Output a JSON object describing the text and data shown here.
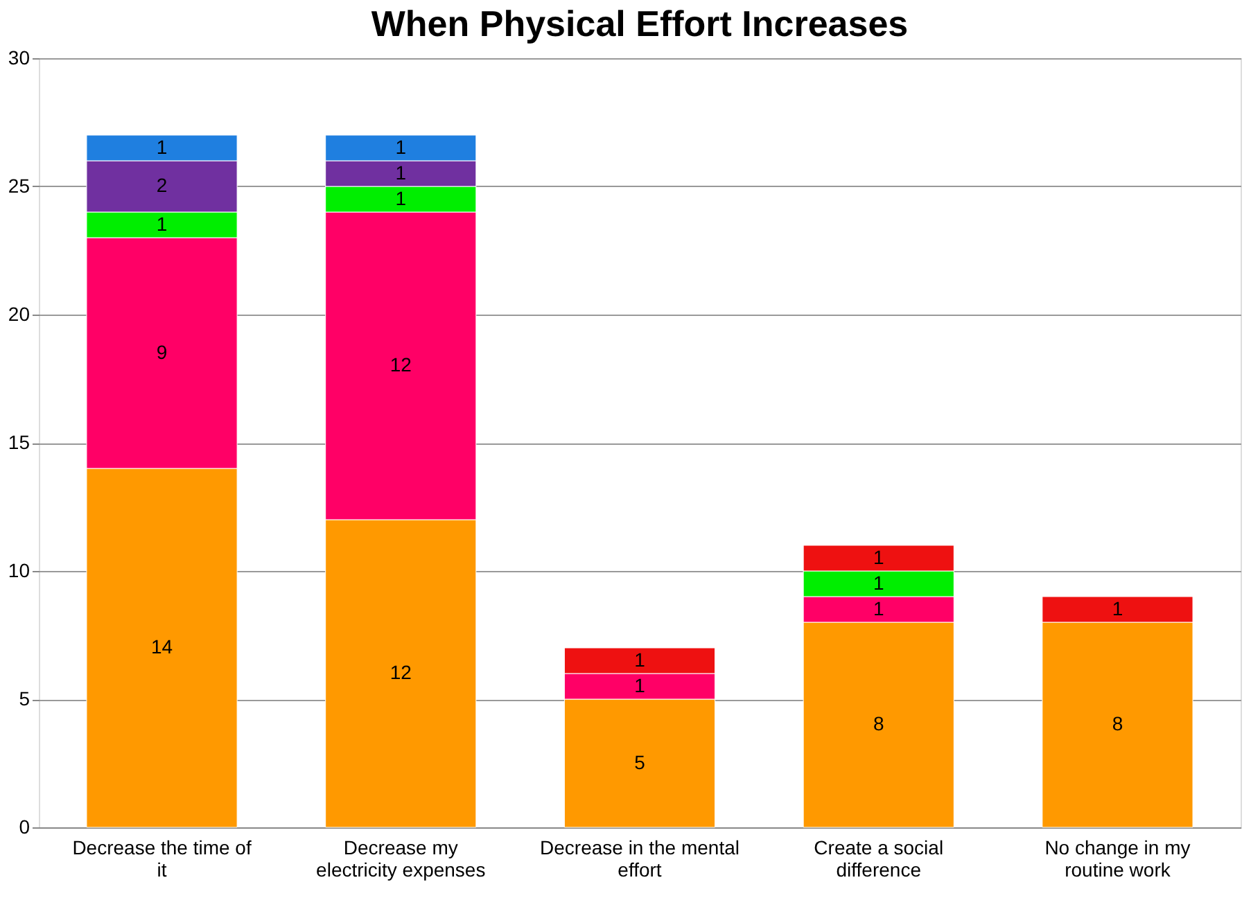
{
  "chart_data": {
    "type": "bar",
    "title": "When Physical Effort Increases",
    "stacked": true,
    "data_labels": true,
    "categories": [
      "Decrease the time of it",
      "Decrease my electricity expenses",
      "Decrease in the mental effort",
      "Create a social difference",
      "No change in my routine work"
    ],
    "series": [
      {
        "color": "#ff9900",
        "values": [
          14,
          12,
          5,
          8,
          8
        ]
      },
      {
        "color": "#ff0066",
        "values": [
          9,
          12,
          1,
          1,
          null
        ]
      },
      {
        "color": "#00ee00",
        "values": [
          1,
          1,
          null,
          1,
          null
        ]
      },
      {
        "color": "#7030a0",
        "values": [
          2,
          1,
          null,
          null,
          null
        ]
      },
      {
        "color": "#1f7fe0",
        "values": [
          1,
          1,
          null,
          null,
          null
        ]
      },
      {
        "color": "#ee1111",
        "values": [
          null,
          null,
          1,
          1,
          1
        ]
      }
    ],
    "ylim": [
      0,
      30
    ],
    "yticks": [
      0,
      5,
      10,
      15,
      20,
      25,
      30
    ],
    "grid": "y"
  }
}
